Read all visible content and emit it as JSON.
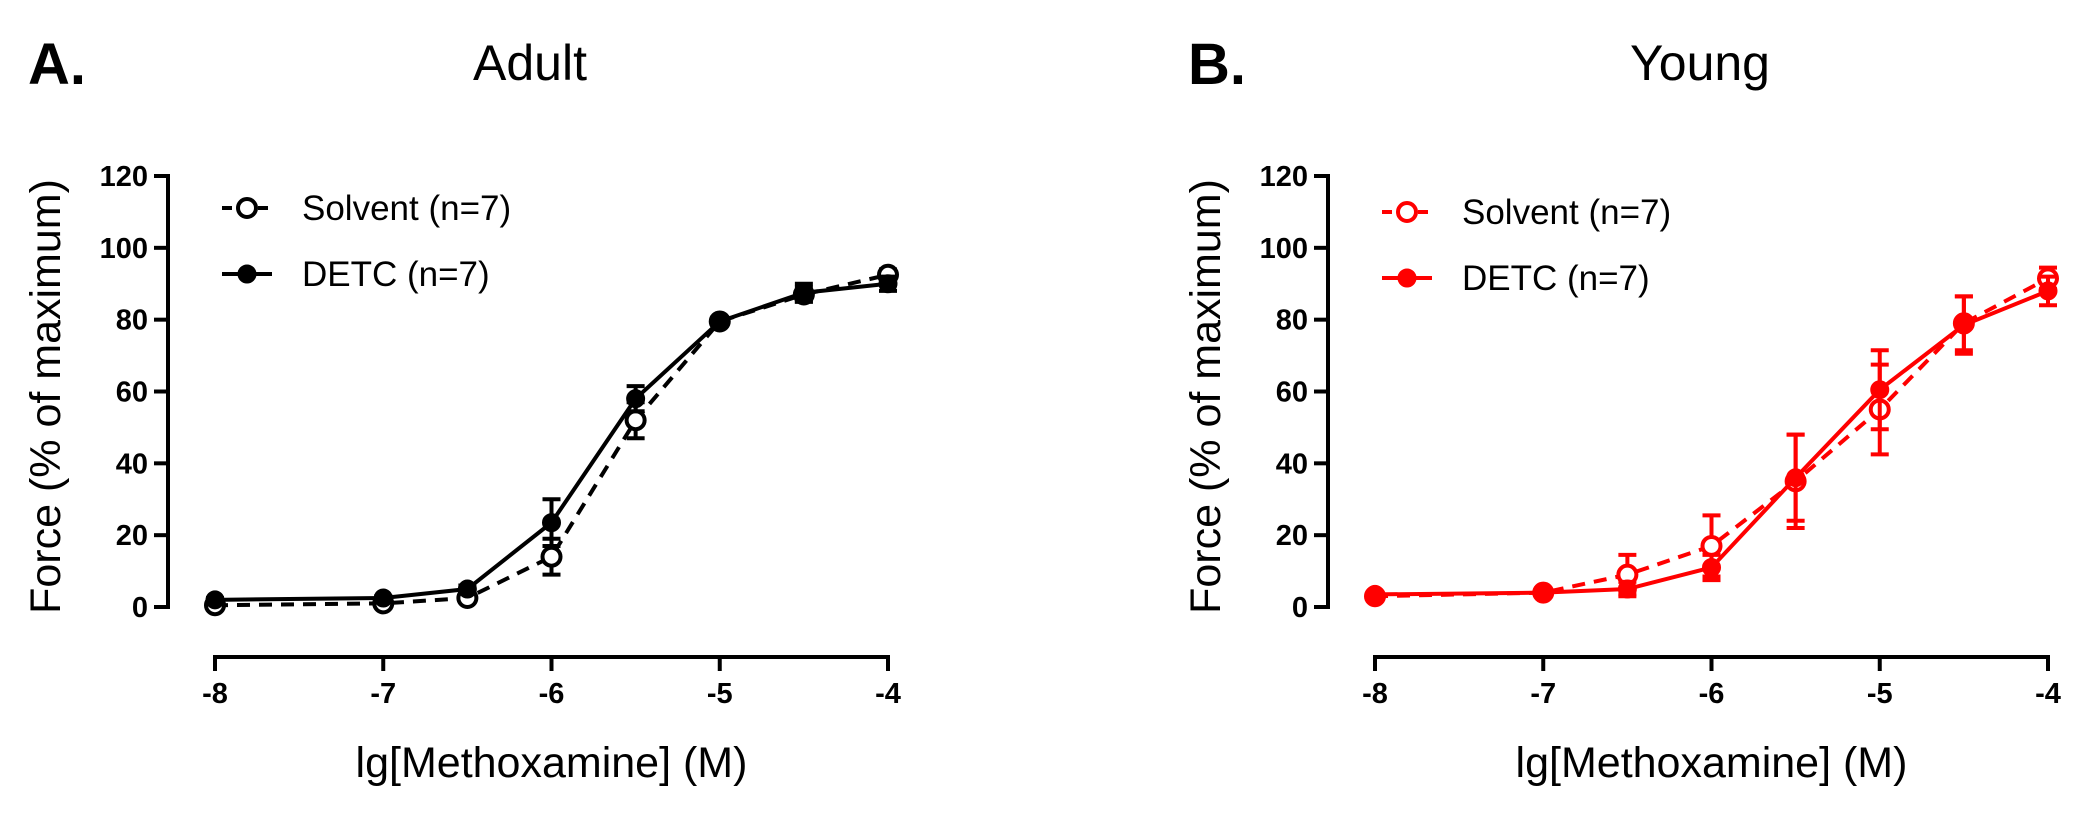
{
  "chart_data": [
    {
      "type": "line",
      "panel_letter": "A.",
      "title": "Adult",
      "xlabel": "lg[Methoxamine] (M)",
      "ylabel": "Force (% of maximum)",
      "xlim": [
        -8,
        -4
      ],
      "ylim": [
        0,
        120
      ],
      "xticks": [
        -8,
        -7,
        -6,
        -5,
        -4
      ],
      "yticks": [
        0,
        20,
        40,
        60,
        80,
        100,
        120
      ],
      "xtick_labels": [
        "-8",
        "-7",
        "-6",
        "-5",
        "-4"
      ],
      "ytick_labels": [
        "0",
        "20",
        "40",
        "60",
        "80",
        "100",
        "120"
      ],
      "color": "#000000",
      "legend_position": "top-left",
      "series": [
        {
          "name": "Solvent (n=7)",
          "marker": "open-circle",
          "line": "dashed",
          "x": [
            -8,
            -7,
            -6.5,
            -6,
            -5.5,
            -5,
            -4.5,
            -4
          ],
          "y": [
            0.5,
            1,
            2.5,
            14,
            52,
            79.5,
            87,
            92.5
          ],
          "err": [
            0.5,
            0.5,
            0.8,
            5,
            5,
            1,
            2,
            1.5
          ]
        },
        {
          "name": "DETC (n=7)",
          "marker": "filled-circle",
          "line": "solid",
          "x": [
            -8,
            -7,
            -6.5,
            -6,
            -5.5,
            -5,
            -4.5,
            -4
          ],
          "y": [
            2,
            2.5,
            5,
            23.5,
            58,
            79.5,
            87.5,
            90
          ],
          "err": [
            0.5,
            0.5,
            1,
            6.5,
            3.5,
            1,
            2.5,
            2
          ]
        }
      ]
    },
    {
      "type": "line",
      "panel_letter": "B.",
      "title": "Young",
      "xlabel": "lg[Methoxamine] (M)",
      "ylabel": "Force (% of maximum)",
      "xlim": [
        -8,
        -4
      ],
      "ylim": [
        0,
        120
      ],
      "xticks": [
        -8,
        -7,
        -6,
        -5,
        -4
      ],
      "yticks": [
        0,
        20,
        40,
        60,
        80,
        100,
        120
      ],
      "xtick_labels": [
        "-8",
        "-7",
        "-6",
        "-5",
        "-4"
      ],
      "ytick_labels": [
        "0",
        "20",
        "40",
        "60",
        "80",
        "100",
        "120"
      ],
      "color": "#ff0000",
      "legend_position": "top-left",
      "series": [
        {
          "name": "Solvent (n=7)",
          "marker": "open-circle",
          "line": "dashed",
          "x": [
            -8,
            -7,
            -6.5,
            -6,
            -5.5,
            -5,
            -4.5,
            -4
          ],
          "y": [
            3,
            4,
            9,
            17,
            35,
            55,
            79,
            91.5
          ],
          "err": [
            0.5,
            0.5,
            5.5,
            8.5,
            13,
            12.5,
            7.5,
            3
          ]
        },
        {
          "name": "DETC (n=7)",
          "marker": "filled-circle",
          "line": "solid",
          "x": [
            -8,
            -7,
            -6.5,
            -6,
            -5.5,
            -5,
            -4.5,
            -4
          ],
          "y": [
            3.5,
            4,
            5,
            11,
            36,
            60.5,
            78.5,
            88
          ],
          "err": [
            0.5,
            0.5,
            2,
            3.5,
            12,
            11,
            8,
            4
          ]
        }
      ]
    }
  ]
}
